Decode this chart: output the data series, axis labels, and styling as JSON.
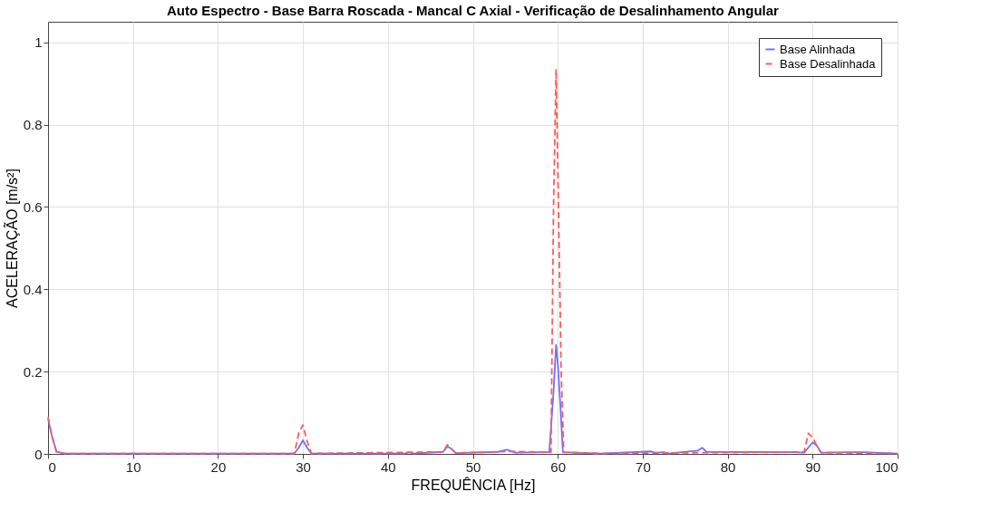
{
  "chart_data": {
    "type": "line",
    "title": "Auto Espectro - Base Barra Roscada - Mancal C Axial - Verificação de Desalinhamento Angular",
    "xlabel": "FREQUÊNCIA [Hz]",
    "ylabel": "ACELERAÇÃO  [m/s²]",
    "xlim": [
      0,
      100
    ],
    "xticks": [
      0,
      10,
      20,
      30,
      40,
      50,
      60,
      70,
      80,
      90,
      100
    ],
    "ylim": [
      0,
      1.05
    ],
    "yticks": [
      0,
      0.2,
      0.4,
      0.6,
      0.8,
      1
    ],
    "grid": true,
    "legend": "top right",
    "series": [
      {
        "name": "Base Alinhada",
        "color": "#7070ff",
        "line_style": "solid",
        "x": [
          0,
          0.5,
          1,
          2,
          29,
          29.5,
          30,
          30.5,
          31,
          42,
          42.5,
          43,
          46.5,
          47,
          47.5,
          48,
          53,
          54,
          55,
          58,
          59,
          59.5,
          59.8,
          60,
          60.3,
          60.6,
          65,
          71,
          71.5,
          72.5,
          73,
          76.5,
          77,
          77.5,
          88,
          89,
          90,
          90.5,
          91,
          94,
          96,
          100
        ],
        "values": [
          0.085,
          0.04,
          0.005,
          0.001,
          0.001,
          0.015,
          0.033,
          0.015,
          0.001,
          0.001,
          0.004,
          0.001,
          0.005,
          0.018,
          0.012,
          0.002,
          0.005,
          0.01,
          0.003,
          0.004,
          0.004,
          0.15,
          0.265,
          0.22,
          0.12,
          0.004,
          0.001,
          0.006,
          0.003,
          0.004,
          0.001,
          0.008,
          0.015,
          0.005,
          0.004,
          0.003,
          0.028,
          0.02,
          0.003,
          0.004,
          0.004,
          0.001
        ]
      },
      {
        "name": "Base Desalinhada",
        "color": "#ff5a5a",
        "line_style": "dashed",
        "x": [
          0,
          0.5,
          1,
          2,
          29,
          29.5,
          30,
          30.5,
          31,
          46.5,
          47,
          47.5,
          48,
          54,
          59.2,
          59.5,
          59.8,
          60,
          60.4,
          60.7,
          65,
          89,
          89.5,
          90,
          90.5,
          91,
          100
        ],
        "values": [
          0.09,
          0.04,
          0.005,
          0.001,
          0.001,
          0.05,
          0.07,
          0.03,
          0.001,
          0.005,
          0.022,
          0.012,
          0.002,
          0.006,
          0.004,
          0.6,
          0.935,
          0.7,
          0.2,
          0.004,
          0.001,
          0.005,
          0.05,
          0.04,
          0.02,
          0.003,
          0.001
        ]
      }
    ]
  }
}
